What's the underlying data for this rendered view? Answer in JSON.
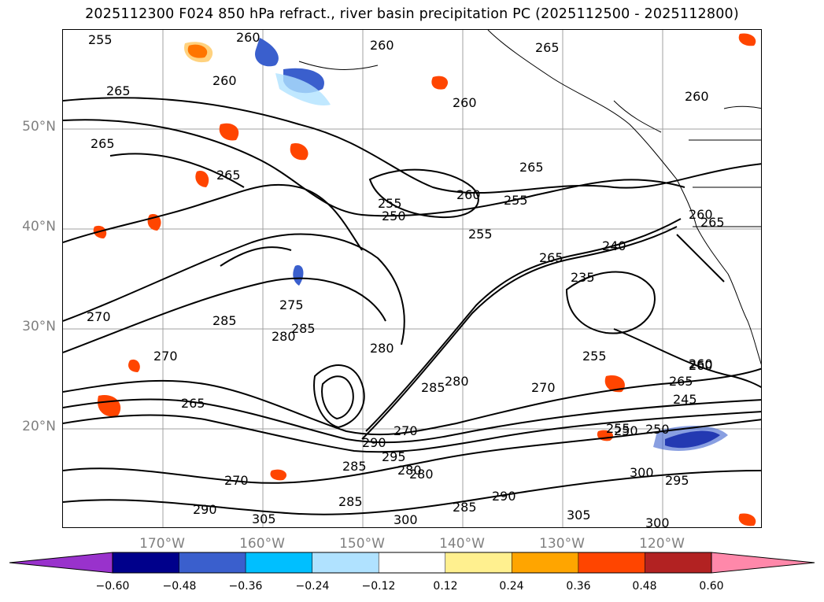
{
  "title": "2025112300 F024 850 hPa refract., river basin precipitation PC (2025112500 - 2025112800)",
  "map": {
    "lat_labels": [
      "50°N",
      "40°N",
      "30°N",
      "20°N"
    ],
    "lon_labels": [
      "170°W",
      "160°W",
      "150°W",
      "140°W",
      "130°W",
      "120°W"
    ],
    "contour_labels": [
      "255",
      "260",
      "260",
      "265",
      "265",
      "265",
      "265",
      "260",
      "260",
      "265",
      "260",
      "265",
      "260",
      "255",
      "250",
      "255",
      "255",
      "260",
      "265",
      "240",
      "235",
      "255",
      "260",
      "270",
      "275",
      "280",
      "285",
      "285",
      "280",
      "285",
      "270",
      "290",
      "295",
      "265",
      "255",
      "250",
      "245",
      "260",
      "265",
      "270",
      "280",
      "285",
      "300",
      "305",
      "300",
      "290",
      "295",
      "300",
      "305",
      "270",
      "285",
      "280",
      "290",
      "285",
      "280",
      "270",
      "250"
    ]
  },
  "colorbar": {
    "colors": [
      "#9932cc",
      "#00008b",
      "#3a5fcd",
      "#00bfff",
      "#b0e2ff",
      "#ffffff",
      "#fff08f",
      "#ffa500",
      "#ff4500",
      "#b22222",
      "#ff88aa"
    ],
    "ticks": [
      "−0.60",
      "−0.48",
      "−0.36",
      "−0.24",
      "−0.12",
      "0.12",
      "0.24",
      "0.36",
      "0.48",
      "0.60"
    ]
  }
}
